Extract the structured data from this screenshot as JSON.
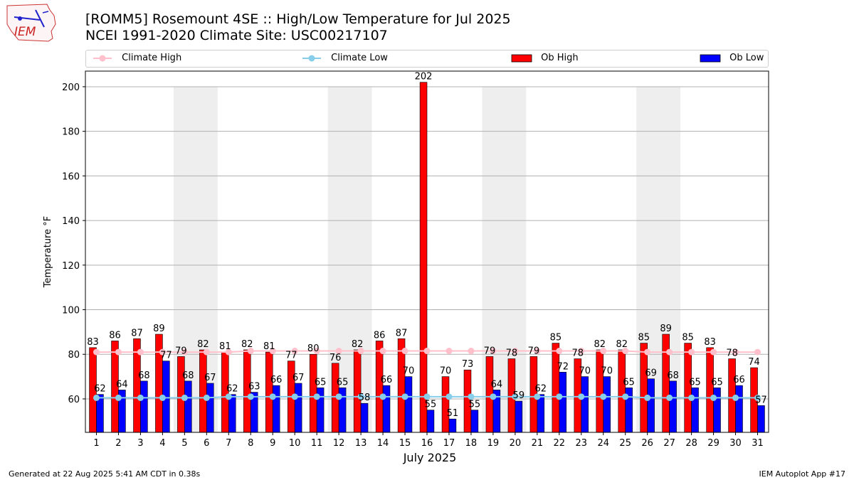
{
  "header": {
    "title_line1": "[ROMM5] Rosemount 4SE :: High/Low Temperature for Jul 2025",
    "title_line2": "NCEI 1991-2020 Climate Site: USC00217107",
    "logo_text": "IEM"
  },
  "legend": {
    "climate_high": "Climate High",
    "climate_low": "Climate Low",
    "ob_high": "Ob High",
    "ob_low": "Ob Low"
  },
  "footer": {
    "generated": "Generated at 22 Aug 2025 5:41 AM CDT in 0.38s",
    "app": "IEM Autoplot App #17"
  },
  "colors": {
    "ob_high": "#ff0000",
    "ob_low": "#0000ff",
    "climate_high": "#ffc0cb",
    "climate_low": "#87ceeb",
    "weekend_shade": "#eeeeee",
    "grid": "#b0b0b0"
  },
  "chart_data": {
    "type": "bar",
    "xlabel": "July 2025",
    "ylabel": "Temperature °F",
    "ylim": [
      45,
      207
    ],
    "yticks": [
      60,
      80,
      100,
      120,
      140,
      160,
      180,
      200
    ],
    "grid": "horizontal",
    "legend_position": "top",
    "shaded_weekends": [
      [
        5,
        6
      ],
      [
        12,
        13
      ],
      [
        19,
        20
      ],
      [
        26,
        27
      ]
    ],
    "categories": [
      "1",
      "2",
      "3",
      "4",
      "5",
      "6",
      "7",
      "8",
      "9",
      "10",
      "11",
      "12",
      "13",
      "14",
      "15",
      "16",
      "17",
      "18",
      "19",
      "20",
      "21",
      "22",
      "23",
      "24",
      "25",
      "26",
      "27",
      "28",
      "29",
      "30",
      "31"
    ],
    "series": [
      {
        "name": "Ob High",
        "kind": "bar",
        "values": [
          83,
          86,
          87,
          89,
          79,
          82,
          81,
          82,
          81,
          77,
          80,
          76,
          82,
          86,
          87,
          202,
          70,
          73,
          79,
          78,
          79,
          85,
          78,
          82,
          82,
          85,
          89,
          85,
          83,
          78,
          74
        ]
      },
      {
        "name": "Ob Low",
        "kind": "bar",
        "values": [
          62,
          64,
          68,
          77,
          68,
          67,
          62,
          63,
          66,
          67,
          65,
          65,
          58,
          66,
          70,
          55,
          51,
          55,
          64,
          59,
          62,
          72,
          70,
          70,
          65,
          69,
          68,
          65,
          65,
          66,
          57
        ]
      },
      {
        "name": "Climate High",
        "kind": "line",
        "values": [
          81,
          81,
          81,
          81,
          81,
          81,
          81,
          81.5,
          81.5,
          81.5,
          81.5,
          81.5,
          81.5,
          81.5,
          81.5,
          81.5,
          81.5,
          81.5,
          81.5,
          81.5,
          81.5,
          81.5,
          81.5,
          81.5,
          81.5,
          81,
          81,
          81,
          81,
          81,
          81
        ]
      },
      {
        "name": "Climate Low",
        "kind": "line",
        "values": [
          60.5,
          60.5,
          60.5,
          60.5,
          60.5,
          60.5,
          61,
          61,
          61,
          61,
          61,
          61,
          61,
          61,
          61,
          61,
          61,
          61,
          61,
          61,
          61,
          61,
          61,
          61,
          61,
          60.5,
          60.5,
          60.5,
          60.5,
          60.5,
          60.5
        ]
      }
    ]
  }
}
